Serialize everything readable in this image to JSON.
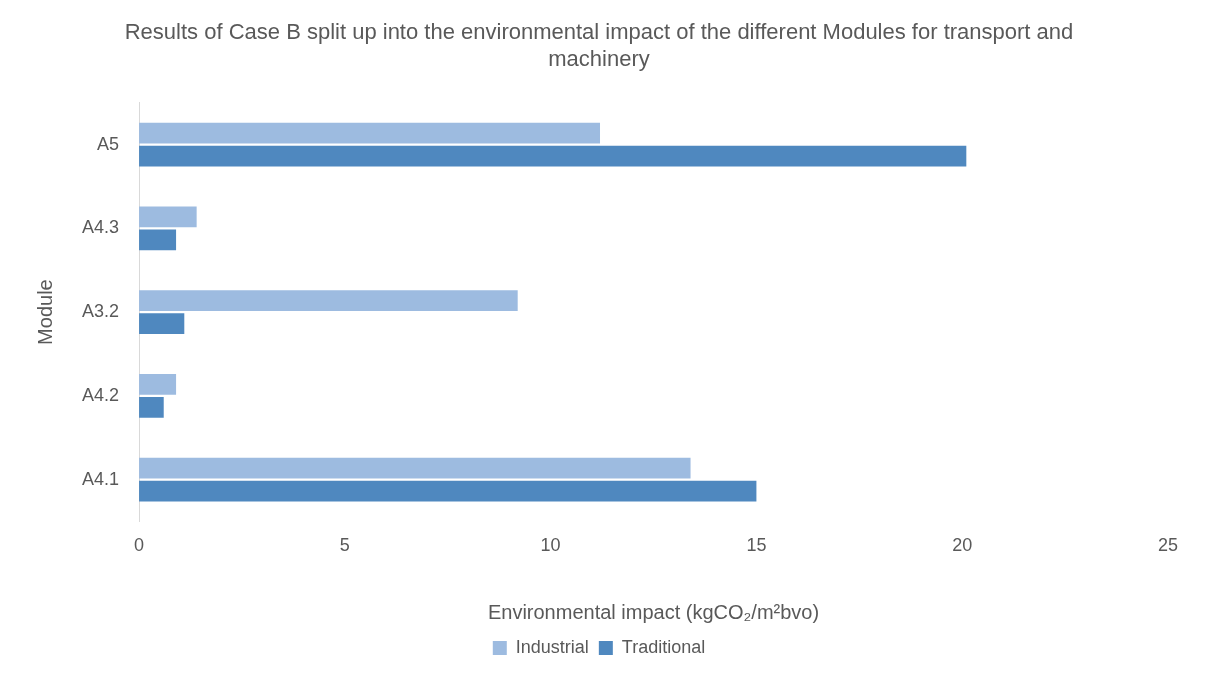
{
  "chart_data": {
    "type": "bar",
    "orientation": "horizontal",
    "title": "Results of Case B split up into the environmental impact of the different Modules for transport and machinery",
    "xlabel": "Environmental impact (kgCO₂/m²bvo)",
    "ylabel": "Module",
    "categories": [
      "A5",
      "A4.3",
      "A3.2",
      "A4.2",
      "A4.1"
    ],
    "series": [
      {
        "name": "Industrial",
        "color": "#9dbbe0",
        "values": [
          11.2,
          1.4,
          9.2,
          0.9,
          13.4
        ]
      },
      {
        "name": "Traditional",
        "color": "#4f88bf",
        "values": [
          20.1,
          0.9,
          1.1,
          0.6,
          15.0
        ]
      }
    ],
    "xlim": [
      0,
      25
    ],
    "xticks": [
      0,
      5,
      10,
      15,
      20,
      25
    ],
    "grid": false,
    "legend": "bottom"
  }
}
